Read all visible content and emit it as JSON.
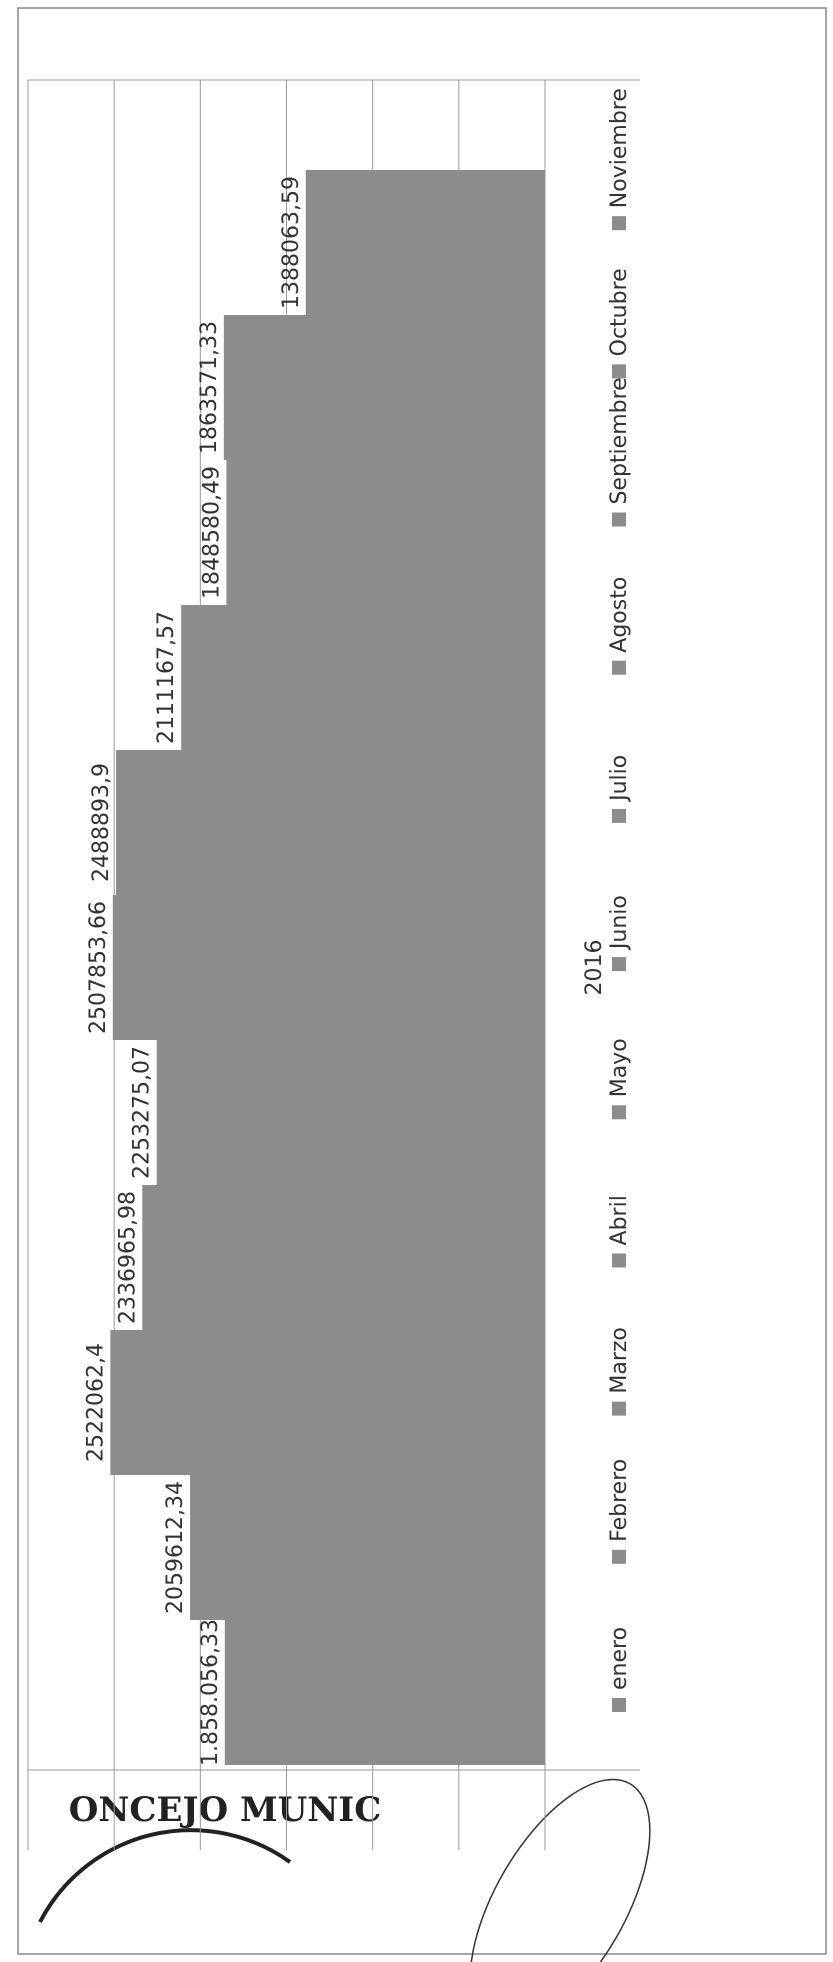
{
  "chart_data": {
    "type": "bar",
    "categories": [
      "2016"
    ],
    "series": [
      {
        "name": "enero",
        "color": "#8c8c8c",
        "values": [
          1858056.33
        ],
        "value_labels": [
          "1.858.056,33"
        ]
      },
      {
        "name": "Febrero",
        "color": "#8c8c8c",
        "values": [
          2059612.34
        ],
        "value_labels": [
          "2059612,34"
        ]
      },
      {
        "name": "Marzo",
        "color": "#8c8c8c",
        "values": [
          2522062.4
        ],
        "value_labels": [
          "2522062,4"
        ]
      },
      {
        "name": "Abril",
        "color": "#8c8c8c",
        "values": [
          2336965.98
        ],
        "value_labels": [
          "2336965,98"
        ]
      },
      {
        "name": "Mayo",
        "color": "#8c8c8c",
        "values": [
          2253275.07
        ],
        "value_labels": [
          "2253275,07"
        ]
      },
      {
        "name": "Junio",
        "color": "#8c8c8c",
        "values": [
          2507853.66
        ],
        "value_labels": [
          "2507853,66"
        ]
      },
      {
        "name": "Julio",
        "color": "#8c8c8c",
        "values": [
          2488893.9
        ],
        "value_labels": [
          "2488893,9"
        ]
      },
      {
        "name": "Agosto",
        "color": "#8c8c8c",
        "values": [
          2111167.57
        ],
        "value_labels": [
          "2111167,57"
        ]
      },
      {
        "name": "Septiembre",
        "color": "#8c8c8c",
        "values": [
          1848580.49
        ],
        "value_labels": [
          "1848580,49"
        ]
      },
      {
        "name": "Octubre",
        "color": "#8c8c8c",
        "values": [
          1863571.33
        ],
        "value_labels": [
          "1863571,33"
        ]
      },
      {
        "name": "Noviembre",
        "color": "#8c8c8c",
        "values": [
          1388063.59
        ],
        "value_labels": [
          "1388063,59"
        ]
      }
    ],
    "ylim": [
      0,
      3000000
    ],
    "yticks": [
      0,
      500000,
      1000000,
      1500000,
      2000000,
      2500000,
      3000000
    ],
    "grid": true,
    "legend": "bottom"
  },
  "stamp": "ONCEJO MUNIC"
}
